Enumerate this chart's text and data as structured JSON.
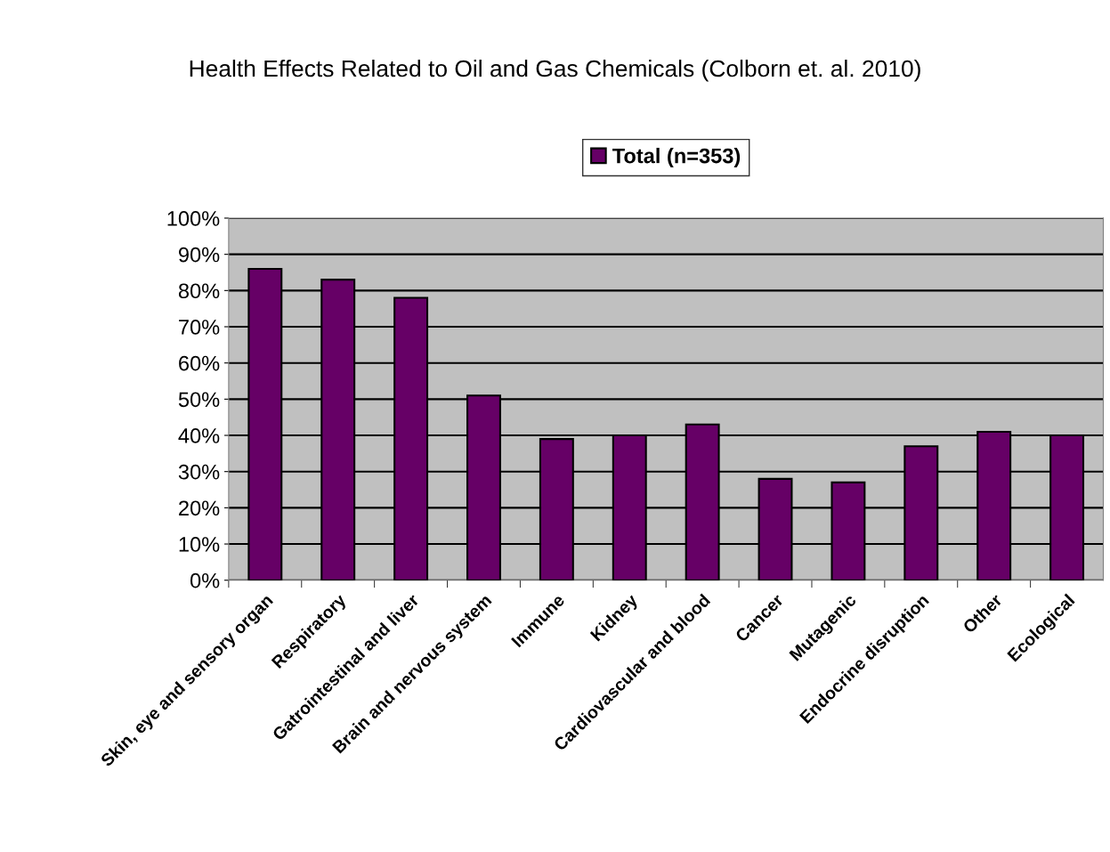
{
  "chart_data": {
    "type": "bar",
    "title": "Health Effects Related to Oil and Gas Chemicals (Colborn et. al. 2010)",
    "categories": [
      "Skin, eye and sensory organ",
      "Respiratory",
      "Gatrointestinal and liver",
      "Brain and nervous system",
      "Immune",
      "Kidney",
      "Cardiovascular and blood",
      "Cancer",
      "Mutagenic",
      "Endocrine disruption",
      "Other",
      "Ecological"
    ],
    "series": [
      {
        "name": "Total (n=353)",
        "color": "#660066",
        "values": [
          86,
          83,
          78,
          51,
          39,
          40,
          43,
          28,
          27,
          37,
          41,
          40
        ]
      }
    ],
    "ylim": [
      0,
      100
    ],
    "yticks": [
      {
        "value": 0,
        "label": "0%"
      },
      {
        "value": 10,
        "label": "10%"
      },
      {
        "value": 20,
        "label": "20%"
      },
      {
        "value": 30,
        "label": "30%"
      },
      {
        "value": 40,
        "label": "40%"
      },
      {
        "value": 50,
        "label": "50%"
      },
      {
        "value": 60,
        "label": "60%"
      },
      {
        "value": 70,
        "label": "70%"
      },
      {
        "value": 80,
        "label": "80%"
      },
      {
        "value": 90,
        "label": "90%"
      },
      {
        "value": 100,
        "label": "100%"
      }
    ],
    "grid": "y",
    "legend": "top"
  }
}
